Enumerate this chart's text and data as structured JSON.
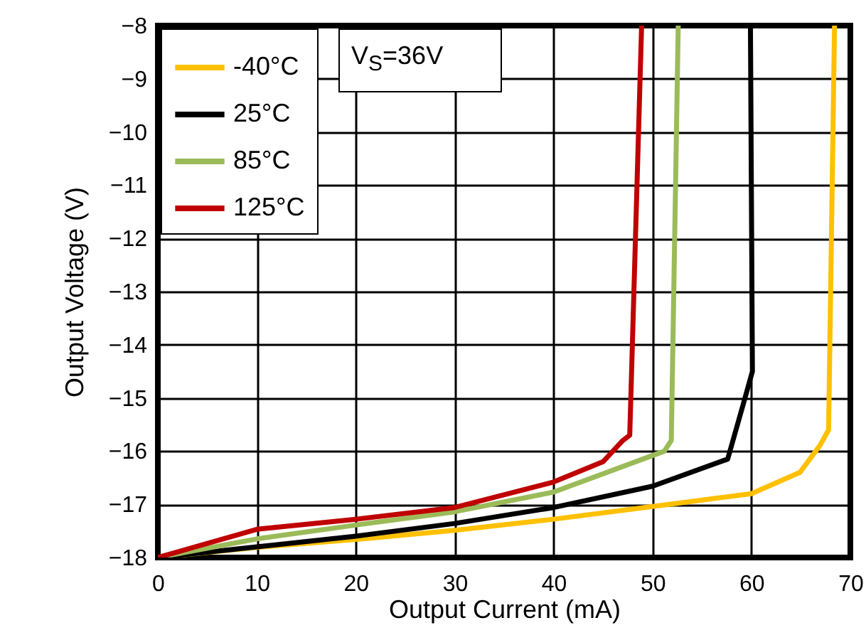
{
  "chart_data": {
    "type": "line",
    "xlabel": "Output Current (mA)",
    "ylabel": "Output Voltage (V)",
    "annotations": [
      "V$_{S}$=36V"
    ],
    "series": [
      {
        "name": "-40°C",
        "color": "#ffc000",
        "x": [
          0,
          10,
          20,
          30,
          40,
          50,
          60,
          64.9,
          66.9,
          67.8,
          68.4
        ],
        "values": [
          -18,
          -17.81,
          -17.66,
          -17.49,
          -17.28,
          -17.04,
          -16.8,
          -16.4,
          -15.9,
          -15.6,
          -8
        ]
      },
      {
        "name": "25°C",
        "color": "#000000",
        "x": [
          0,
          10,
          20,
          30,
          40,
          50,
          57.6,
          59.2,
          60.1,
          59.9
        ],
        "values": [
          -18,
          -17.8,
          -17.6,
          -17.36,
          -17.06,
          -16.66,
          -16.15,
          -15.1,
          -14.5,
          -8
        ]
      },
      {
        "name": "85°C",
        "color": "#9bbb59",
        "x": [
          0,
          10,
          20,
          30,
          40,
          51.2,
          51.9,
          52.6
        ],
        "values": [
          -18,
          -17.65,
          -17.39,
          -17.14,
          -16.77,
          -16.0,
          -15.8,
          -8
        ]
      },
      {
        "name": "125°C",
        "color": "#c00000",
        "x": [
          0,
          10,
          20,
          30,
          40,
          45,
          47,
          47.7,
          48.9
        ],
        "values": [
          -18,
          -17.47,
          -17.28,
          -17.06,
          -16.58,
          -16.2,
          -15.8,
          -15.7,
          -8
        ]
      }
    ],
    "xlim": [
      0,
      70
    ],
    "xticks": [
      0,
      10,
      20,
      30,
      40,
      50,
      60,
      70
    ],
    "ylim": [
      -18,
      -8
    ],
    "yticks": [
      -18,
      -17,
      -16,
      -15,
      -14,
      -13,
      -12,
      -11,
      -10,
      -9,
      -8
    ],
    "grid": true,
    "legend": "top left",
    "line_style": "solid",
    "marker": "none"
  }
}
